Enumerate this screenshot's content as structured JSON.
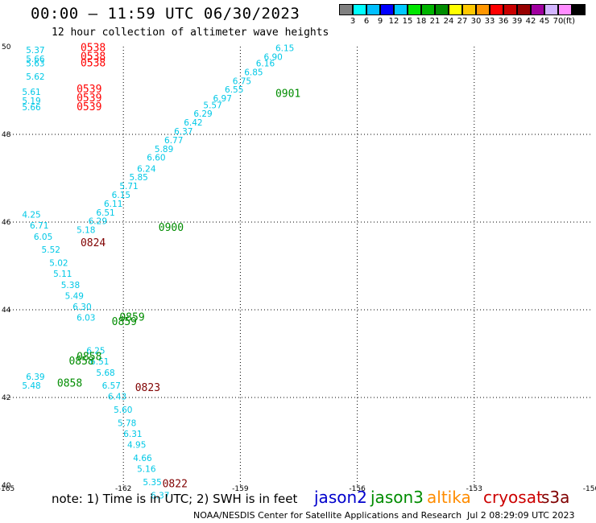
{
  "header": {
    "title": "00:00 — 11:59 UTC 06/30/2023",
    "subtitle": "12 hour collection of altimeter wave heights"
  },
  "colorbar": {
    "colors": [
      "#808080",
      "#00ffff",
      "#00bfff",
      "#0000ff",
      "#00c8ff",
      "#00e600",
      "#00b400",
      "#008c00",
      "#ffff00",
      "#ffc800",
      "#ff9600",
      "#ff0000",
      "#c80000",
      "#960000",
      "#a000a0",
      "#d2b4ff",
      "#ff8cff",
      "#000000"
    ],
    "labels": [
      "3",
      "6",
      "9",
      "12",
      "15",
      "18",
      "21",
      "24",
      "27",
      "30",
      "33",
      "36",
      "39",
      "42",
      "45",
      "70"
    ],
    "unit": "(ft)"
  },
  "footer": {
    "note": "note: 1) Time is in UTC; 2) SWH is in feet",
    "satellites": [
      {
        "name": "jason2",
        "color": "#0000cc"
      },
      {
        "name": "jason3",
        "color": "#008c00"
      },
      {
        "name": "altika",
        "color": "#ff8c00"
      },
      {
        "name": "cryosat",
        "color": "#cc0000"
      },
      {
        "name": "s3a",
        "color": "#800000"
      }
    ],
    "credit": "NOAA/NESDIS Center for Satellite Applications and Research",
    "timestamp": "Jul  2 08:29:09 UTC 2023"
  },
  "chart_data": {
    "type": "scatter",
    "title": "00:00 — 11:59 UTC 06/30/2023",
    "xlabel": "",
    "ylabel": "",
    "xlim": [
      -165,
      -150
    ],
    "ylim": [
      40,
      50
    ],
    "x_ticks": [
      "-165",
      "-162",
      "-159",
      "-156",
      "-153",
      "-150"
    ],
    "y_ticks": [
      "40",
      "42",
      "44",
      "46",
      "48",
      "50"
    ],
    "grid": true,
    "track_color": "#00c8e6",
    "swh_labels": [
      {
        "x": -158.1,
        "y": 49.9,
        "v": "6.15"
      },
      {
        "x": -158.4,
        "y": 49.7,
        "v": "6.90"
      },
      {
        "x": -158.6,
        "y": 49.55,
        "v": "6.16"
      },
      {
        "x": -158.9,
        "y": 49.35,
        "v": "6.85"
      },
      {
        "x": -159.2,
        "y": 49.15,
        "v": "6.75"
      },
      {
        "x": -159.4,
        "y": 48.95,
        "v": "6.55"
      },
      {
        "x": -159.7,
        "y": 48.75,
        "v": "6.97"
      },
      {
        "x": -159.95,
        "y": 48.6,
        "v": "5.57"
      },
      {
        "x": -160.2,
        "y": 48.4,
        "v": "6.29"
      },
      {
        "x": -160.45,
        "y": 48.2,
        "v": "6.42"
      },
      {
        "x": -160.7,
        "y": 48.0,
        "v": "6.37"
      },
      {
        "x": -160.95,
        "y": 47.8,
        "v": "6.77"
      },
      {
        "x": -161.2,
        "y": 47.6,
        "v": "5.89"
      },
      {
        "x": -161.4,
        "y": 47.4,
        "v": "6.60"
      },
      {
        "x": -161.65,
        "y": 47.15,
        "v": "6.24"
      },
      {
        "x": -161.85,
        "y": 46.95,
        "v": "5.85"
      },
      {
        "x": -162.1,
        "y": 46.75,
        "v": "5.71"
      },
      {
        "x": -162.3,
        "y": 46.55,
        "v": "6.15"
      },
      {
        "x": -162.5,
        "y": 46.35,
        "v": "6.11"
      },
      {
        "x": -162.7,
        "y": 46.15,
        "v": "6.51"
      },
      {
        "x": -162.9,
        "y": 45.95,
        "v": "6.29"
      },
      {
        "x": -163.2,
        "y": 45.75,
        "v": "5.18"
      },
      {
        "x": -164.6,
        "y": 46.1,
        "v": "4.25"
      },
      {
        "x": -164.4,
        "y": 45.85,
        "v": "6.71"
      },
      {
        "x": -164.3,
        "y": 45.6,
        "v": "6.05"
      },
      {
        "x": -164.1,
        "y": 45.3,
        "v": "5.52"
      },
      {
        "x": -163.9,
        "y": 45.0,
        "v": "5.02"
      },
      {
        "x": -163.8,
        "y": 44.75,
        "v": "5.11"
      },
      {
        "x": -163.6,
        "y": 44.5,
        "v": "5.38"
      },
      {
        "x": -163.5,
        "y": 44.25,
        "v": "5.49"
      },
      {
        "x": -163.3,
        "y": 44.0,
        "v": "6.30"
      },
      {
        "x": -163.2,
        "y": 43.75,
        "v": "6.03"
      },
      {
        "x": -162.95,
        "y": 43.0,
        "v": "6.25"
      },
      {
        "x": -162.85,
        "y": 42.75,
        "v": "6.51"
      },
      {
        "x": -162.7,
        "y": 42.5,
        "v": "5.68"
      },
      {
        "x": -162.55,
        "y": 42.2,
        "v": "6.57"
      },
      {
        "x": -162.4,
        "y": 41.95,
        "v": "6.43"
      },
      {
        "x": -162.25,
        "y": 41.65,
        "v": "5.60"
      },
      {
        "x": -162.15,
        "y": 41.35,
        "v": "5.78"
      },
      {
        "x": -162.0,
        "y": 41.1,
        "v": "6.31"
      },
      {
        "x": -161.9,
        "y": 40.85,
        "v": "4.95"
      },
      {
        "x": -161.75,
        "y": 40.55,
        "v": "4.66"
      },
      {
        "x": -161.65,
        "y": 40.3,
        "v": "5.16"
      },
      {
        "x": -161.5,
        "y": 40.0,
        "v": "5.35"
      },
      {
        "x": -161.3,
        "y": 39.7,
        "v": "6.37"
      },
      {
        "x": -164.5,
        "y": 42.4,
        "v": "6.39"
      },
      {
        "x": -164.6,
        "y": 42.2,
        "v": "5.48"
      },
      {
        "x": -164.5,
        "y": 49.85,
        "v": "5.37"
      },
      {
        "x": -164.5,
        "y": 49.65,
        "v": "5.66"
      },
      {
        "x": -164.5,
        "y": 49.55,
        "v": "5.63"
      },
      {
        "x": -164.5,
        "y": 49.25,
        "v": "5.62"
      },
      {
        "x": -164.6,
        "y": 48.9,
        "v": "5.61"
      },
      {
        "x": -164.6,
        "y": 48.7,
        "v": "5.19"
      },
      {
        "x": -164.6,
        "y": 48.55,
        "v": "5.66"
      }
    ],
    "time_labels": [
      {
        "x": -163.1,
        "y": 49.9,
        "v": "0538",
        "color": "#ff0000"
      },
      {
        "x": -163.1,
        "y": 49.7,
        "v": "0538",
        "color": "#ff0000"
      },
      {
        "x": -163.1,
        "y": 49.55,
        "v": "0538",
        "color": "#ff0000"
      },
      {
        "x": -163.2,
        "y": 48.95,
        "v": "0539",
        "color": "#ff0000"
      },
      {
        "x": -163.2,
        "y": 48.75,
        "v": "0539",
        "color": "#ff0000"
      },
      {
        "x": -163.2,
        "y": 48.55,
        "v": "0539",
        "color": "#ff0000"
      },
      {
        "x": -158.1,
        "y": 48.85,
        "v": "0901",
        "color": "#008c00"
      },
      {
        "x": -161.1,
        "y": 45.8,
        "v": "0900",
        "color": "#008c00"
      },
      {
        "x": -163.1,
        "y": 45.45,
        "v": "0824",
        "color": "#800000"
      },
      {
        "x": -162.1,
        "y": 43.75,
        "v": "0859",
        "color": "#008c00"
      },
      {
        "x": -162.3,
        "y": 43.65,
        "v": "0859",
        "color": "#008c00"
      },
      {
        "x": -163.2,
        "y": 42.85,
        "v": "0858",
        "color": "#008c00"
      },
      {
        "x": -163.4,
        "y": 42.75,
        "v": "0858",
        "color": "#008c00"
      },
      {
        "x": -163.7,
        "y": 42.25,
        "v": "0858",
        "color": "#008c00"
      },
      {
        "x": -161.7,
        "y": 42.15,
        "v": "0823",
        "color": "#800000"
      },
      {
        "x": -161.0,
        "y": 39.95,
        "v": "0822",
        "color": "#800000"
      }
    ]
  }
}
